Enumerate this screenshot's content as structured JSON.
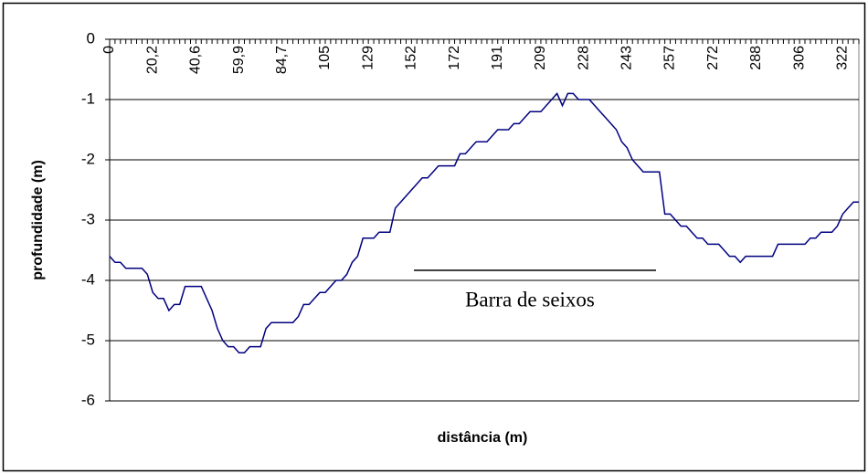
{
  "chart_data": {
    "type": "line",
    "x_label": "distância (m)",
    "y_label": "profundidade (m)",
    "annotation": "Barra de seixos",
    "categories": [
      "0",
      null,
      null,
      null,
      null,
      null,
      null,
      null,
      "20,2",
      null,
      null,
      null,
      null,
      null,
      null,
      null,
      "40,6",
      null,
      null,
      null,
      null,
      null,
      null,
      null,
      "59,9",
      null,
      null,
      null,
      null,
      null,
      null,
      null,
      "84,7",
      null,
      null,
      null,
      null,
      null,
      null,
      null,
      "105",
      null,
      null,
      null,
      null,
      null,
      null,
      null,
      "129",
      null,
      null,
      null,
      null,
      null,
      null,
      null,
      "152",
      null,
      null,
      null,
      null,
      null,
      null,
      null,
      "172",
      null,
      null,
      null,
      null,
      null,
      null,
      null,
      "191",
      null,
      null,
      null,
      null,
      null,
      null,
      null,
      "209",
      null,
      null,
      null,
      null,
      null,
      null,
      null,
      "228",
      null,
      null,
      null,
      null,
      null,
      null,
      null,
      "243",
      null,
      null,
      null,
      null,
      null,
      null,
      null,
      "257",
      null,
      null,
      null,
      null,
      null,
      null,
      null,
      "272",
      null,
      null,
      null,
      null,
      null,
      null,
      null,
      "288",
      null,
      null,
      null,
      null,
      null,
      null,
      null,
      "306",
      null,
      null,
      null,
      null,
      null,
      null,
      null,
      "322",
      null,
      null,
      null
    ],
    "series": [
      {
        "color": "#000080",
        "values": [
          -3.6,
          -3.7,
          -3.7,
          -3.8,
          -3.8,
          -3.8,
          -3.8,
          -3.9,
          -4.2,
          -4.3,
          -4.3,
          -4.5,
          -4.4,
          -4.4,
          -4.1,
          -4.1,
          -4.1,
          -4.1,
          -4.3,
          -4.5,
          -4.8,
          -5.0,
          -5.1,
          -5.1,
          -5.2,
          -5.2,
          -5.1,
          -5.1,
          -5.1,
          -4.8,
          -4.7,
          -4.7,
          -4.7,
          -4.7,
          -4.7,
          -4.6,
          -4.4,
          -4.4,
          -4.3,
          -4.2,
          -4.2,
          -4.1,
          -4.0,
          -4.0,
          -3.9,
          -3.7,
          -3.6,
          -3.3,
          -3.3,
          -3.3,
          -3.2,
          -3.2,
          -3.2,
          -2.8,
          -2.7,
          -2.6,
          -2.5,
          -2.4,
          -2.3,
          -2.3,
          -2.2,
          -2.1,
          -2.1,
          -2.1,
          -2.1,
          -1.9,
          -1.9,
          -1.8,
          -1.7,
          -1.7,
          -1.7,
          -1.6,
          -1.5,
          -1.5,
          -1.5,
          -1.4,
          -1.4,
          -1.3,
          -1.2,
          -1.2,
          -1.2,
          -1.1,
          -1.0,
          -0.9,
          -1.1,
          -0.9,
          -0.9,
          -1.0,
          -1.0,
          -1.0,
          -1.1,
          -1.2,
          -1.3,
          -1.4,
          -1.5,
          -1.7,
          -1.8,
          -2.0,
          -2.1,
          -2.2,
          -2.2,
          -2.2,
          -2.2,
          -2.9,
          -2.9,
          -3.0,
          -3.1,
          -3.1,
          -3.2,
          -3.3,
          -3.3,
          -3.4,
          -3.4,
          -3.4,
          -3.5,
          -3.6,
          -3.6,
          -3.7,
          -3.6,
          -3.6,
          -3.6,
          -3.6,
          -3.6,
          -3.6,
          -3.4,
          -3.4,
          -3.4,
          -3.4,
          -3.4,
          -3.4,
          -3.3,
          -3.3,
          -3.2,
          -3.2,
          -3.2,
          -3.1,
          -2.9,
          -2.8,
          -2.7,
          -2.7
        ]
      }
    ],
    "ylim": [
      -6,
      0
    ],
    "yticks": [
      0,
      -1,
      -2,
      -3,
      -4,
      -5,
      -6
    ],
    "grid": true
  }
}
